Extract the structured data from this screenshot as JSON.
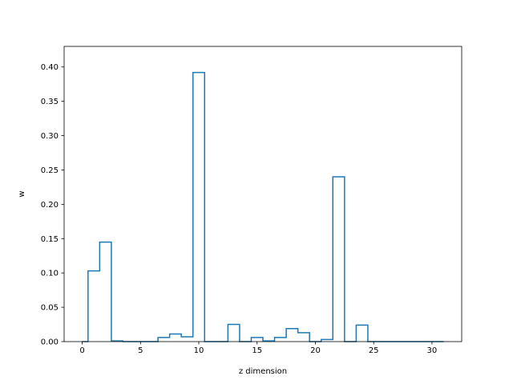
{
  "chart_data": {
    "type": "line",
    "style": "step",
    "xlabel": "z dimension",
    "ylabel": "w",
    "xlim": [
      -1.55,
      32.55
    ],
    "ylim": [
      0,
      0.43
    ],
    "grid": false,
    "xticks": [
      0,
      5,
      10,
      15,
      20,
      25,
      30
    ],
    "yticks": [
      0.0,
      0.05,
      0.1,
      0.15,
      0.2,
      0.25,
      0.3,
      0.35,
      0.4
    ],
    "ytick_labels": [
      "0.00",
      "0.05",
      "0.10",
      "0.15",
      "0.20",
      "0.25",
      "0.30",
      "0.35",
      "0.40"
    ],
    "series": [
      {
        "color": "#1f77b4",
        "x": [
          0,
          1,
          2,
          3,
          4,
          5,
          6,
          7,
          8,
          9,
          10,
          11,
          12,
          13,
          14,
          15,
          16,
          17,
          18,
          19,
          20,
          21,
          22,
          23,
          24,
          25,
          26,
          27,
          28,
          29,
          30,
          31
        ],
        "values": [
          0.0,
          0.103,
          0.145,
          0.001,
          0.0,
          0.0,
          0.0,
          0.006,
          0.011,
          0.007,
          0.392,
          0.0,
          0.0,
          0.025,
          0.0,
          0.006,
          0.001,
          0.006,
          0.019,
          0.013,
          0.0,
          0.003,
          0.24,
          0.0,
          0.024,
          0.0,
          0.0,
          0.0,
          0.0,
          0.0,
          0.0,
          0.0
        ]
      }
    ]
  }
}
